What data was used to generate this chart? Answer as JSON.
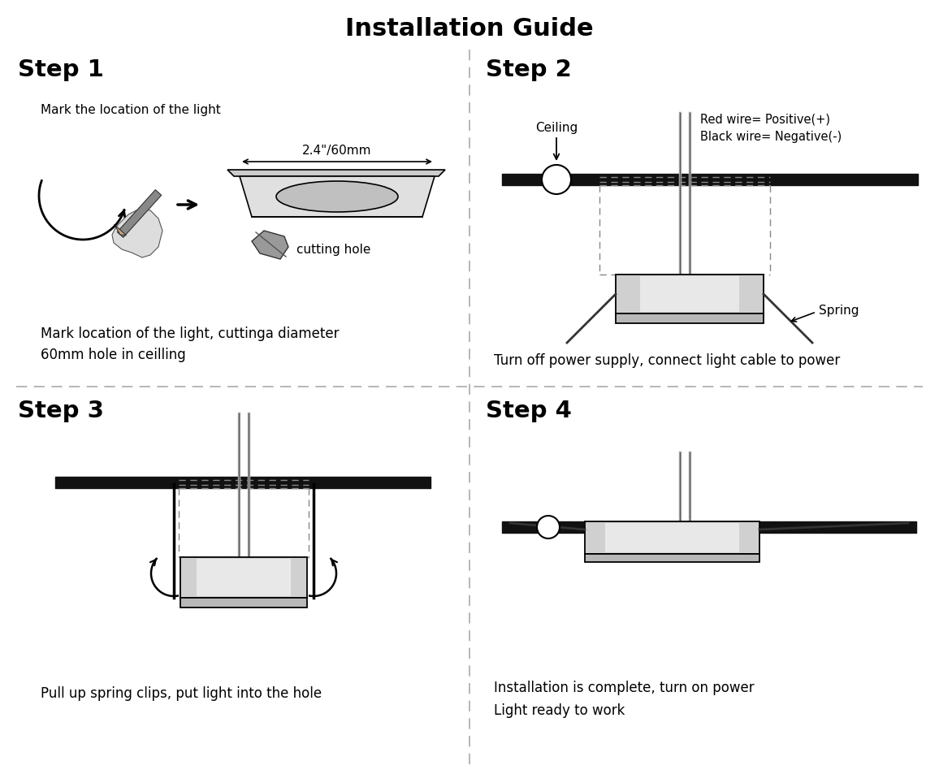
{
  "title": "Installation Guide",
  "title_fontsize": 22,
  "background_color": "#ffffff",
  "text_color": "#000000",
  "step1_heading": "Step 1",
  "step1_label1": "Mark the location of the light",
  "step1_dim": "2.4\"/60mm",
  "step1_label2": "cutting hole",
  "step1_desc": "Mark location of the light, cuttinga diameter\n60mm hole in ceilling",
  "step2_heading": "Step 2",
  "step2_ceiling": "Ceiling",
  "step2_wire_info": "Red wire= Positive(+)\nBlack wire= Negative(-)",
  "step2_spring": "Spring",
  "step2_desc": "Turn off power supply, connect light cable to power",
  "step3_heading": "Step 3",
  "step3_desc": "Pull up spring clips, put light into the hole",
  "step4_heading": "Step 4",
  "step4_desc": "Installation is complete, turn on power\nLight ready to work",
  "divider_color": "#aaaaaa",
  "ceiling_color": "#111111",
  "wire_color": "#aaaaaa",
  "body_color": "#d0d0d0",
  "face_color": "#b8b8b8",
  "spring_color": "#333333"
}
